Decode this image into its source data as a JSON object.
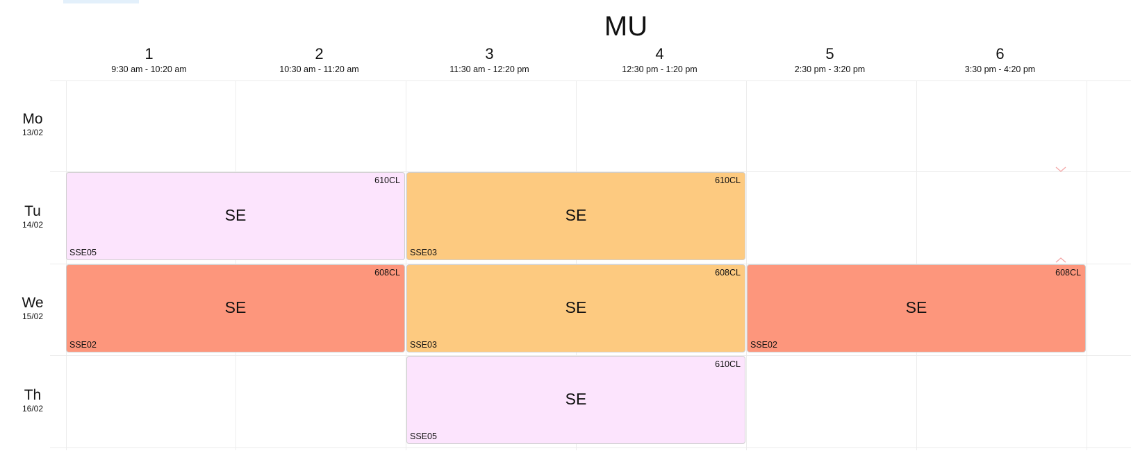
{
  "title": "MU",
  "periods": [
    {
      "num": "1",
      "time": "9:30 am - 10:20 am"
    },
    {
      "num": "2",
      "time": "10:30 am - 11:20 am"
    },
    {
      "num": "3",
      "time": "11:30 am - 12:20 pm"
    },
    {
      "num": "4",
      "time": "12:30 pm - 1:20 pm"
    },
    {
      "num": "5",
      "time": "2:30 pm - 3:20 pm"
    },
    {
      "num": "6",
      "time": "3:30 pm - 4:20 pm"
    }
  ],
  "days": [
    {
      "abbr": "Mo",
      "date": "13/02"
    },
    {
      "abbr": "Tu",
      "date": "14/02"
    },
    {
      "abbr": "We",
      "date": "15/02"
    },
    {
      "abbr": "Th",
      "date": "16/02"
    }
  ],
  "events": [
    {
      "subject": "SE",
      "room": "610CL",
      "group": "SSE05",
      "color": "#fce4fd"
    },
    {
      "subject": "SE",
      "room": "610CL",
      "group": "SSE03",
      "color": "#fdca80"
    },
    {
      "subject": "SE",
      "room": "608CL",
      "group": "SSE02",
      "color": "#fd967c"
    },
    {
      "subject": "SE",
      "room": "608CL",
      "group": "SSE03",
      "color": "#fdca80"
    },
    {
      "subject": "SE",
      "room": "608CL",
      "group": "SSE02",
      "color": "#fd967c"
    },
    {
      "subject": "SE",
      "room": "610CL",
      "group": "SSE05",
      "color": "#fce4fd"
    }
  ],
  "icons": {
    "expand": "chevron-down-icon",
    "collapse": "chevron-up-icon",
    "accent": "#f4a7a7"
  }
}
